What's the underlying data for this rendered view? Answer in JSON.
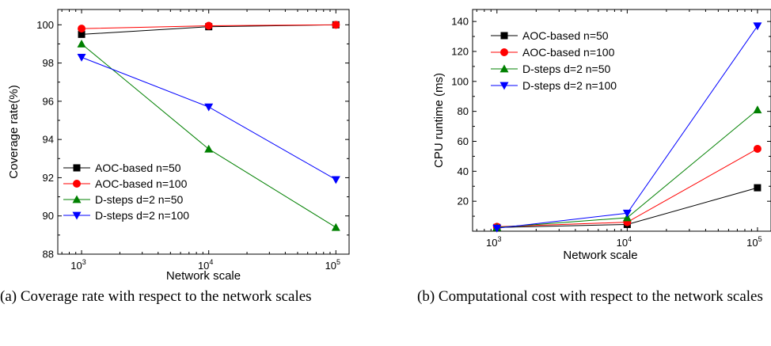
{
  "chart_data": [
    {
      "type": "line",
      "x_scale": "log",
      "x": [
        1000,
        10000,
        100000
      ],
      "xticks": [
        1000,
        10000,
        100000
      ],
      "xlabel": "Network scale",
      "ylabel": "Coverage rate(%)",
      "ylim": [
        88,
        100.8
      ],
      "yticks": [
        88,
        90,
        92,
        94,
        96,
        98,
        100
      ],
      "legend_position": "bottom-left",
      "series": [
        {
          "name": "AOC-based n=50",
          "color": "#000000",
          "marker": "square",
          "values": [
            99.5,
            99.9,
            100.0
          ]
        },
        {
          "name": "AOC-based n=100",
          "color": "#ff0000",
          "marker": "circle",
          "values": [
            99.8,
            99.95,
            100.0
          ]
        },
        {
          "name": "D-steps d=2 n=50",
          "color": "#008000",
          "marker": "triangle-up",
          "values": [
            99.0,
            93.5,
            89.4
          ]
        },
        {
          "name": "D-steps d=2 n=100",
          "color": "#0000ff",
          "marker": "triangle-down",
          "values": [
            98.3,
            95.7,
            91.9
          ]
        }
      ],
      "caption": "(a) Coverage rate with respect to the network scales"
    },
    {
      "type": "line",
      "x_scale": "log",
      "x": [
        1000,
        10000,
        100000
      ],
      "xticks": [
        1000,
        10000,
        100000
      ],
      "xlabel": "Network scale",
      "ylabel": "CPU runtime (ms)",
      "ylim": [
        0,
        148
      ],
      "yticks": [
        20,
        40,
        60,
        80,
        100,
        120,
        140
      ],
      "legend_position": "top-left",
      "series": [
        {
          "name": "AOC-based n=50",
          "color": "#000000",
          "marker": "square",
          "values": [
            2.5,
            4.5,
            29
          ]
        },
        {
          "name": "AOC-based n=100",
          "color": "#ff0000",
          "marker": "circle",
          "values": [
            3,
            6,
            55
          ]
        },
        {
          "name": "D-steps d=2 n=50",
          "color": "#008000",
          "marker": "triangle-up",
          "values": [
            2.5,
            9,
            81
          ]
        },
        {
          "name": "D-steps d=2 n=100",
          "color": "#0000ff",
          "marker": "triangle-down",
          "values": [
            2,
            12,
            137
          ]
        }
      ],
      "caption": "(b) Computational cost with respect to the network scales"
    }
  ]
}
